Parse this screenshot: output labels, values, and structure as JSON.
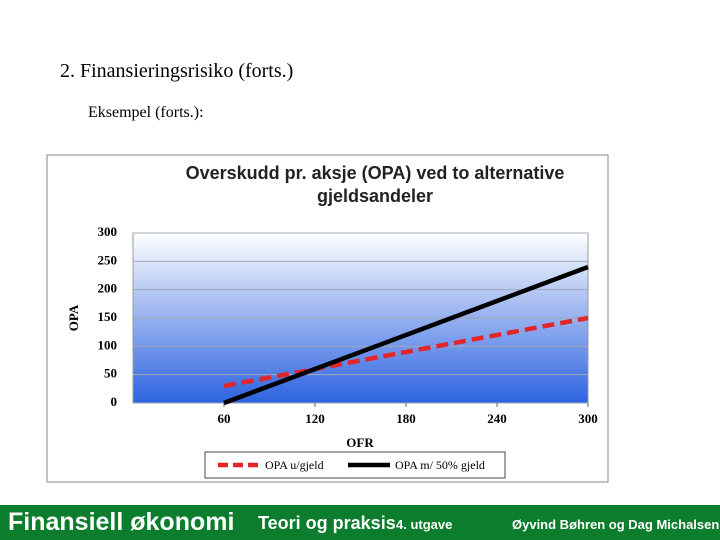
{
  "slide": {
    "heading": "2. Finansieringsrisiko (forts.)",
    "subheading": "Eksempel (forts.):"
  },
  "chart_data": {
    "type": "line",
    "title": "Overskudd pr. aksje (OPA) ved to alternative gjeldsandeler",
    "x_label": "OFR",
    "y_label": "OPA",
    "x": [
      60,
      120,
      180,
      240,
      300
    ],
    "series": [
      {
        "name": "OPA u/gjeld",
        "color": "#e2252b",
        "dashed": true,
        "values": [
          30,
          60,
          90,
          120,
          150
        ]
      },
      {
        "name": "OPA m/ 50% gjeld",
        "color": "#000000",
        "dashed": false,
        "values": [
          0,
          60,
          120,
          180,
          240
        ]
      }
    ],
    "xlim": [
      0,
      300
    ],
    "xticks": [
      60,
      120,
      180,
      240,
      300
    ],
    "ylim": [
      0,
      300
    ],
    "yticks": [
      0,
      50,
      100,
      150,
      200,
      250,
      300
    ],
    "grid": true,
    "legend": "bottom"
  },
  "footer": {
    "brand": "Finansiell økonomi",
    "subtitle": "Teori og praksis",
    "edition": "4. utgave",
    "authors": "Øyvind Bøhren og Dag Michalsen"
  }
}
